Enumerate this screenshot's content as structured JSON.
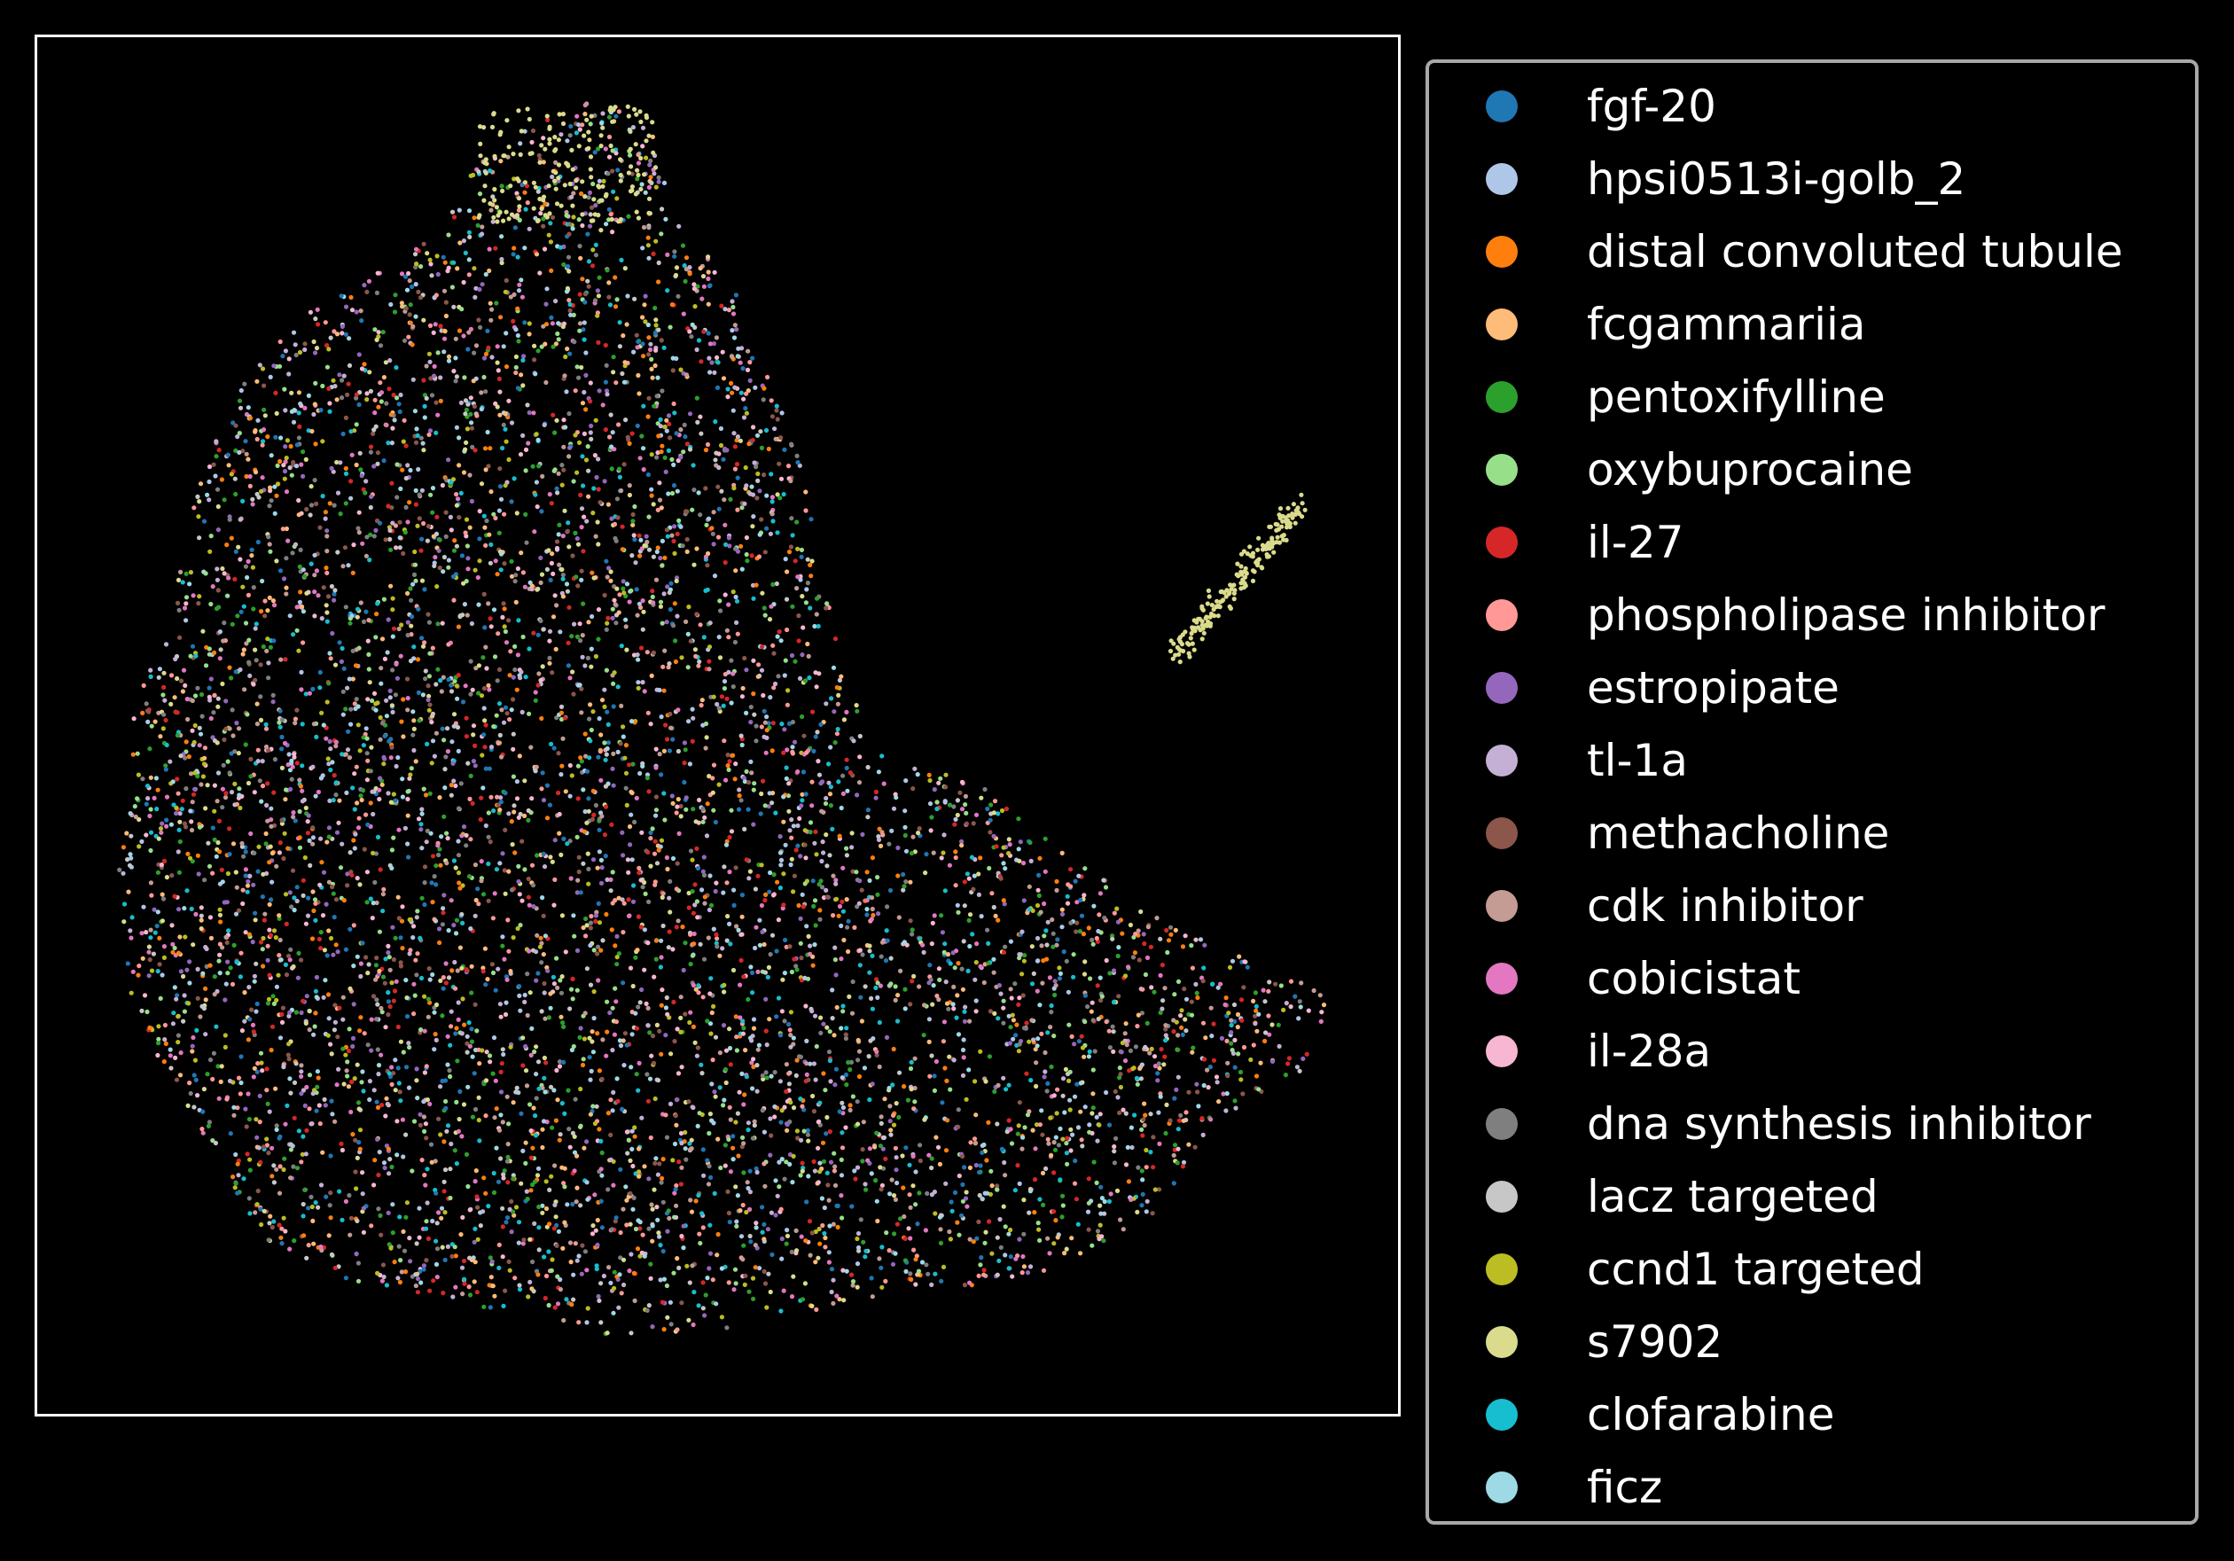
{
  "chart_data": {
    "type": "scatter",
    "title": "",
    "xlabel": "",
    "ylabel": "",
    "axes_visible": false,
    "background": "#000000",
    "frame_color": "#ffffff",
    "legend_position": "right",
    "series": [
      {
        "name": "fgf-20",
        "color": "#1f77b4"
      },
      {
        "name": "hpsi0513i-golb_2",
        "color": "#aec7e8"
      },
      {
        "name": "distal convoluted tubule",
        "color": "#ff7f0e"
      },
      {
        "name": "fcgammariia",
        "color": "#ffbb78"
      },
      {
        "name": "pentoxifylline",
        "color": "#2ca02c"
      },
      {
        "name": "oxybuprocaine",
        "color": "#98df8a"
      },
      {
        "name": "il-27",
        "color": "#d62728"
      },
      {
        "name": "phospholipase inhibitor",
        "color": "#ff9896"
      },
      {
        "name": "estropipate",
        "color": "#9467bd"
      },
      {
        "name": "tl-1a",
        "color": "#c5b0d5"
      },
      {
        "name": "methacholine",
        "color": "#8c564b"
      },
      {
        "name": "cdk inhibitor",
        "color": "#c49c94"
      },
      {
        "name": "cobicistat",
        "color": "#e377c2"
      },
      {
        "name": "il-28a",
        "color": "#f7b6d2"
      },
      {
        "name": "dna synthesis inhibitor",
        "color": "#7f7f7f"
      },
      {
        "name": "lacz targeted",
        "color": "#c7c7c7"
      },
      {
        "name": "ccnd1 targeted",
        "color": "#bcbd22"
      },
      {
        "name": "s7902",
        "color": "#dbdb8d"
      },
      {
        "name": "clofarabine",
        "color": "#17becf"
      },
      {
        "name": "ficz",
        "color": "#9edae5"
      }
    ]
  }
}
